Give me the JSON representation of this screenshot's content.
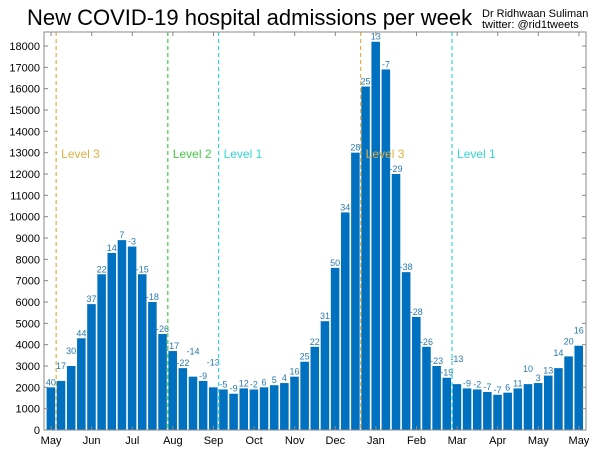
{
  "chart_data": {
    "type": "bar",
    "title": "New COVID-19 hospital admissions per week",
    "credit": [
      "Dr Ridhwaan Suliman",
      "twitter: @rid1tweets"
    ],
    "ylim": [
      0,
      18000
    ],
    "yticks": [
      0,
      1000,
      2000,
      3000,
      4000,
      5000,
      6000,
      7000,
      8000,
      9000,
      10000,
      11000,
      12000,
      13000,
      14000,
      15000,
      16000,
      17000,
      18000
    ],
    "xtick_labels": [
      "May",
      "Jun",
      "Jul",
      "Aug",
      "Sep",
      "Oct",
      "Nov",
      "Dec",
      "Jan",
      "Feb",
      "Mar",
      "Apr",
      "May",
      "May"
    ],
    "values": [
      2000,
      2300,
      3000,
      4300,
      5900,
      7300,
      8300,
      8900,
      8600,
      7300,
      6000,
      4500,
      3700,
      2900,
      2500,
      2300,
      2000,
      1900,
      1700,
      1950,
      1900,
      2000,
      2100,
      2200,
      2500,
      3200,
      3900,
      5100,
      7600,
      10200,
      13000,
      16100,
      18200,
      16900,
      12000,
      7400,
      5300,
      3900,
      3000,
      2450,
      2150,
      1950,
      1900,
      1780,
      1650,
      1750,
      1950,
      2150,
      2200,
      2550,
      2900,
      3450,
      3950
    ],
    "data_labels": [
      "40",
      "17",
      "30",
      "44",
      "37",
      "22",
      "14",
      "7",
      "-3",
      "-15",
      "-18",
      "-26",
      "-17",
      "-22",
      "-14",
      "-9",
      "-13",
      "-5",
      "-9",
      "12",
      "-2",
      "6",
      "5",
      "4",
      "16",
      "25",
      "22",
      "31",
      "50",
      "34",
      "28",
      "25",
      "13",
      "-7",
      "-29",
      "-38",
      "-28",
      "-26",
      "-23",
      "-19",
      "-13",
      "-9",
      "-2",
      "-7",
      "-7",
      "6",
      "11",
      "10",
      "3",
      "13",
      "14",
      "20",
      "16"
    ],
    "levels": [
      {
        "label": "Level 3",
        "after_bar": 1,
        "color": "#e0b040"
      },
      {
        "label": "Level 2",
        "after_bar": 12,
        "color": "#44cc44"
      },
      {
        "label": "Level 1",
        "after_bar": 17,
        "color": "#33d6d6"
      },
      {
        "label": "Level 3",
        "after_bar": 31,
        "color": "#e0b040"
      },
      {
        "label": "Level 1",
        "after_bar": 40,
        "color": "#33d6d6"
      }
    ],
    "colors": {
      "bar": "#0070c0",
      "data_label": "#2a7ab0",
      "axis": "#888888"
    },
    "grid": false
  }
}
